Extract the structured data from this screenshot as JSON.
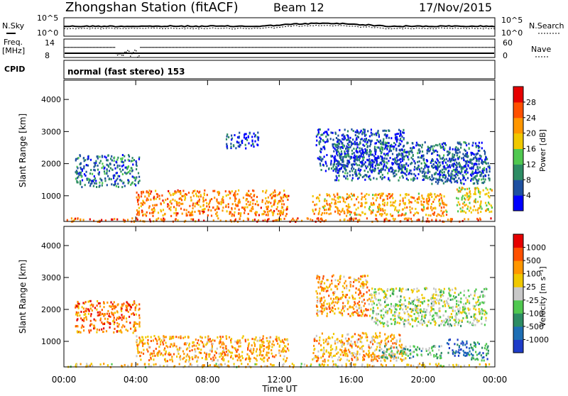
{
  "header": {
    "station": "Zhongshan Station (fitACF)",
    "beam": "Beam 12",
    "date": "17/Nov/2015"
  },
  "summary_panel": {
    "nsky_label": "N.Sky",
    "nsearch_label": "N.Search",
    "freq_label_1": "Freq.",
    "freq_label_2": "[MHz]",
    "nave_label": "Nave",
    "cpid_label": "CPID",
    "mode_text": "normal (fast stereo) 153",
    "noise_ticks": [
      "10^5",
      "10^0"
    ],
    "freq_ticks": [
      "14",
      "8"
    ],
    "nave_ticks": [
      "60",
      "0"
    ]
  },
  "chart_data": [
    {
      "type": "heatmap",
      "name": "power",
      "ylabel": "Slant Range [km]",
      "y_ticks": [
        "1000",
        "2000",
        "3000",
        "4000"
      ],
      "ylim": [
        200,
        4600
      ],
      "xlabel": "Time UT",
      "x_ticks": [
        "00:00",
        "04:00",
        "08:00",
        "12:00",
        "16:00",
        "20:00",
        "00:00"
      ],
      "xlim_hours": [
        0,
        24
      ],
      "colorbar": {
        "label": "Power [dB]",
        "ticks": [
          "4",
          "8",
          "12",
          "16",
          "20",
          "24",
          "28"
        ],
        "range": [
          0,
          30
        ],
        "colors": [
          "#0000ff",
          "#1e50a0",
          "#2d8c64",
          "#50c850",
          "#f0c800",
          "#ff9600",
          "#ff5000",
          "#e60000"
        ]
      },
      "regions": [
        {
          "t0": 0.1,
          "t1": 24,
          "r0": 220,
          "r1": 330,
          "level": 0.78
        },
        {
          "t0": 4.0,
          "t1": 12.5,
          "r0": 400,
          "r1": 1200,
          "level": 0.72
        },
        {
          "t0": 13.8,
          "t1": 21.3,
          "r0": 400,
          "r1": 1100,
          "level": 0.65
        },
        {
          "t0": 21.8,
          "t1": 23.8,
          "r0": 500,
          "r1": 1300,
          "level": 0.55
        },
        {
          "t0": 0.6,
          "t1": 4.2,
          "r0": 1300,
          "r1": 2300,
          "level": 0.25
        },
        {
          "t0": 14.0,
          "t1": 19.0,
          "r0": 1800,
          "r1": 3100,
          "level": 0.15
        },
        {
          "t0": 15.0,
          "t1": 23.5,
          "r0": 1500,
          "r1": 2700,
          "level": 0.22
        },
        {
          "t0": 9.0,
          "t1": 10.8,
          "r0": 2500,
          "r1": 3000,
          "level": 0.15
        },
        {
          "t0": 20.0,
          "t1": 23.7,
          "r0": 1400,
          "r1": 2200,
          "level": 0.2
        }
      ]
    },
    {
      "type": "heatmap",
      "name": "velocity",
      "ylabel": "Slant Range [km]",
      "y_ticks": [
        "1000",
        "2000",
        "3000",
        "4000"
      ],
      "ylim": [
        200,
        4600
      ],
      "xlabel": "Time UT",
      "x_ticks": [
        "00:00",
        "04:00",
        "08:00",
        "12:00",
        "16:00",
        "20:00",
        "00:00"
      ],
      "xlim_hours": [
        0,
        24
      ],
      "colorbar": {
        "label": "Velocity [m s⁻¹]",
        "ticks": [
          "1000",
          "500",
          "100",
          "25",
          "-25",
          "-100",
          "-500",
          "-1000"
        ],
        "colors": [
          "#1e3cc8",
          "#1e6eb4",
          "#2d8c64",
          "#50c850",
          "#c8c8c8",
          "#f0c800",
          "#ff9600",
          "#ff5000",
          "#e60000"
        ]
      },
      "regions": [
        {
          "t0": 0.1,
          "t1": 24,
          "r0": 220,
          "r1": 330,
          "level": 0.6
        },
        {
          "t0": 4.0,
          "t1": 12.5,
          "r0": 400,
          "r1": 1200,
          "level": 0.7
        },
        {
          "t0": 13.8,
          "t1": 19.0,
          "r0": 400,
          "r1": 1300,
          "level": 0.65
        },
        {
          "t0": 17.5,
          "t1": 21.0,
          "r0": 500,
          "r1": 900,
          "level": 0.38
        },
        {
          "t0": 21.3,
          "t1": 22.4,
          "r0": 550,
          "r1": 1100,
          "level": 0.12
        },
        {
          "t0": 22.4,
          "t1": 23.6,
          "r0": 400,
          "r1": 1000,
          "level": 0.25
        },
        {
          "t0": 0.6,
          "t1": 4.2,
          "r0": 1300,
          "r1": 2300,
          "level": 0.78
        },
        {
          "t0": 14.0,
          "t1": 17.0,
          "r0": 1800,
          "r1": 3100,
          "level": 0.7
        },
        {
          "t0": 17.0,
          "t1": 23.5,
          "r0": 1500,
          "r1": 2700,
          "level": 0.48
        }
      ]
    }
  ]
}
